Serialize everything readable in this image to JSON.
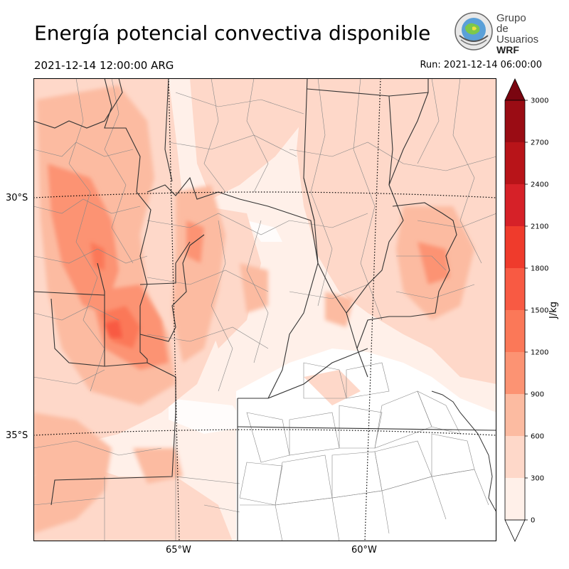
{
  "title": "Energía potencial convectiva disponible",
  "valid_time": "2021-12-14 12:00:00 ARG",
  "run_time": "Run: 2021-12-14 06:00:00",
  "logo": {
    "line1": "Grupo de",
    "line2": "Usuarios",
    "line3": "WRF"
  },
  "latitude_labels": [
    "30°S",
    "35°S"
  ],
  "longitude_labels": [
    "65°W",
    "60°W"
  ],
  "colorbar": {
    "unit": "J/kg",
    "levels": [
      0,
      300,
      600,
      900,
      1200,
      1500,
      1800,
      2100,
      2400,
      2700,
      3000
    ],
    "colors": [
      "#fff0e9",
      "#fed8c9",
      "#fcbba1",
      "#fc9373",
      "#fb7858",
      "#f85a43",
      "#ef3b2c",
      "#d62128",
      "#b81419",
      "#9a0c14",
      "#7a0510"
    ],
    "extend": "both"
  },
  "colors": {
    "boundary": "#333333",
    "county": "#888888",
    "graticule": "#000000"
  }
}
